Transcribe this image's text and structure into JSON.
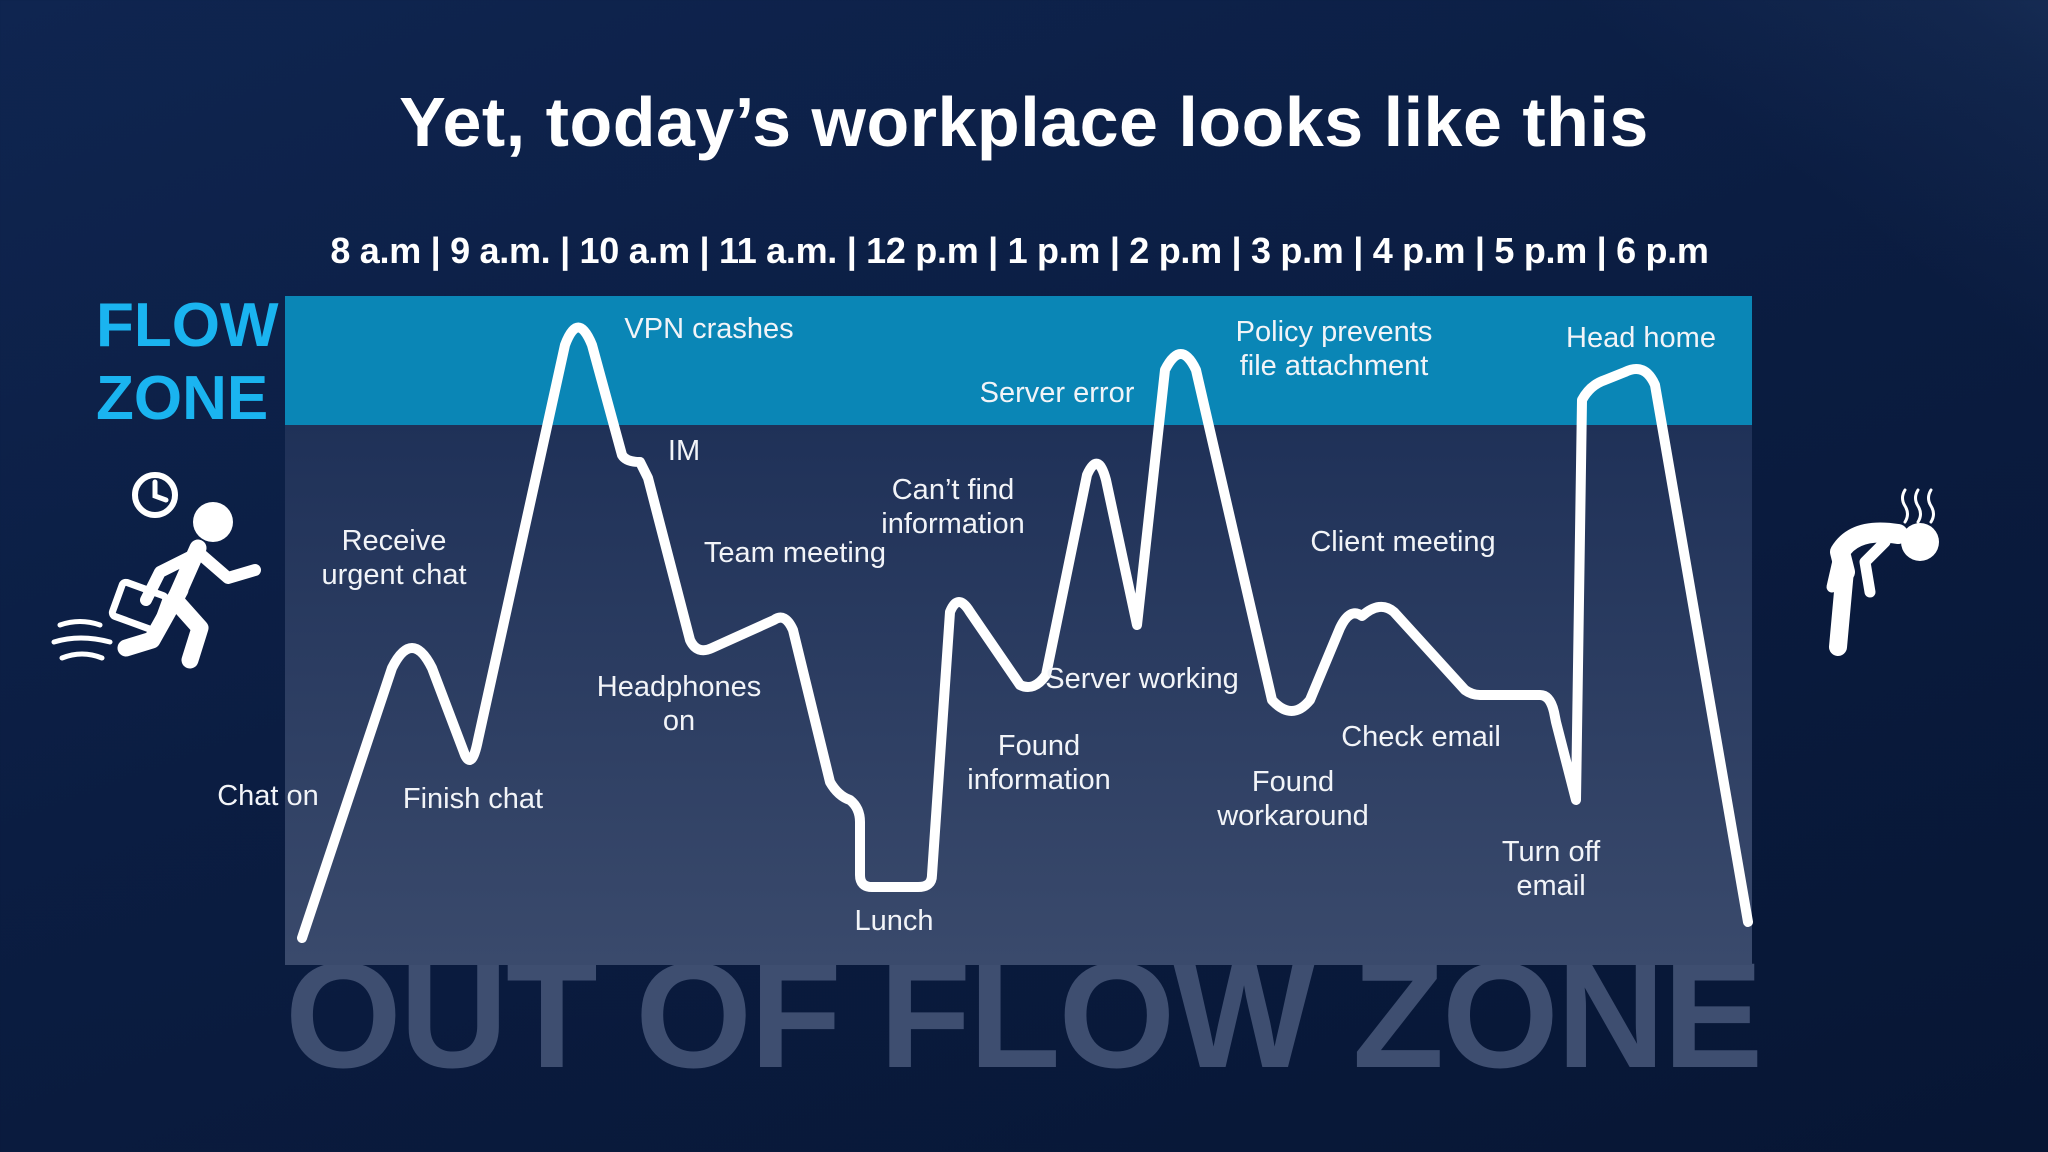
{
  "title": "Yet, today’s workplace looks like this",
  "timeline": "8 a.m | 9 a.m. | 10 a.m | 11 a.m. | 12 p.m | 1 p.m | 2 p.m | 3 p.m | 4 p.m | 5 p.m | 6 p.m",
  "flow_zone": {
    "line1": "FLOW",
    "line2": "ZONE"
  },
  "out_zone": "OUT OF FLOW ZONE",
  "icons": {
    "left": "running-person-with-briefcase-and-clock-icon",
    "right": "exhausted-bent-person-icon"
  },
  "colors": {
    "flow_band": "#0a86b6",
    "plot_area": "#26385e",
    "line": "#ffffff",
    "flow_text": "#1ab4f0",
    "out_zone_text": "#3e4e70"
  },
  "annotations": {
    "chat_on": "Chat on",
    "receive_urgent_chat_1": "Receive",
    "receive_urgent_chat_2": "urgent chat",
    "finish_chat": "Finish chat",
    "vpn_crashes": "VPN crashes",
    "im": "IM",
    "headphones_on_1": "Headphones",
    "headphones_on_2": "on",
    "team_meeting": "Team meeting",
    "lunch": "Lunch",
    "cant_find_info_1": "Can’t find",
    "cant_find_info_2": "information",
    "found_information_1": "Found",
    "found_information_2": "information",
    "server_error": "Server error",
    "server_working": "Server working",
    "policy_prevents_1": "Policy prevents",
    "policy_prevents_2": "file attachment",
    "found_workaround_1": "Found",
    "found_workaround_2": "workaround",
    "client_meeting": "Client meeting",
    "check_email": "Check email",
    "turn_off_email_1": "Turn off",
    "turn_off_email_2": "email",
    "head_home": "Head home"
  }
}
